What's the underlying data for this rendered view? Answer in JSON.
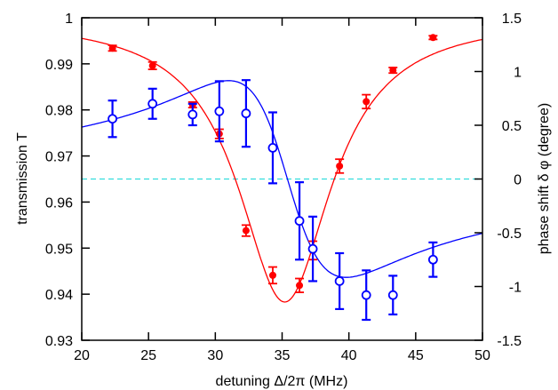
{
  "chart_data": {
    "type": "scatter",
    "title": "",
    "xlabel": "detuning Δ/2π (MHz)",
    "ylabel": "transmission T",
    "y2label": "phase shift δ φ (degree)",
    "xlim": [
      20,
      50
    ],
    "ylim": [
      0.93,
      1.0
    ],
    "y2lim": [
      -1.5,
      1.5
    ],
    "xticks": [
      "20",
      "25",
      "30",
      "35",
      "40",
      "45",
      "50"
    ],
    "yticks": [
      "0.93",
      "0.94",
      "0.95",
      "0.96",
      "0.97",
      "0.98",
      "0.99",
      "1"
    ],
    "y2ticks": [
      "-1.5",
      "-1",
      "-0.5",
      "0",
      "0.5",
      "1",
      "1.5"
    ],
    "grid": false,
    "reference_line": {
      "axis": "y2",
      "value": 0,
      "style": "dashed",
      "color": "#33dddd"
    },
    "series": [
      {
        "name": "transmission",
        "axis": "y",
        "color": "#ff0000",
        "marker": "filled-circle",
        "x": [
          22.3,
          25.3,
          28.3,
          30.3,
          32.3,
          34.3,
          36.3,
          37.3,
          39.3,
          41.3,
          43.3,
          46.3
        ],
        "y": [
          0.9934,
          0.9896,
          0.9811,
          0.9748,
          0.9538,
          0.9441,
          0.9419,
          0.9495,
          0.9678,
          0.9818,
          0.9886,
          0.9957
        ],
        "err": [
          0.0006,
          0.0008,
          0.0006,
          0.001,
          0.0012,
          0.0018,
          0.0015,
          0.002,
          0.0015,
          0.0015,
          0.0006,
          0.0004
        ],
        "fit": {
          "model": "lorentzian-dip",
          "baseline": 1.0,
          "depth": 0.0617,
          "center": 35.2,
          "width": 4.25
        }
      },
      {
        "name": "phase shift",
        "axis": "y2",
        "color": "#0000ff",
        "marker": "open-circle",
        "x": [
          22.3,
          25.3,
          28.3,
          30.3,
          32.3,
          34.3,
          36.3,
          37.3,
          39.3,
          41.3,
          43.3,
          46.3
        ],
        "y": [
          0.56,
          0.7,
          0.6,
          0.63,
          0.61,
          0.29,
          -0.39,
          -0.65,
          -0.95,
          -1.08,
          -1.08,
          -0.75
        ],
        "err": [
          0.17,
          0.14,
          0.1,
          0.28,
          0.31,
          0.33,
          0.36,
          0.3,
          0.26,
          0.23,
          0.18,
          0.16
        ],
        "fit": {
          "model": "dispersive",
          "amplitude": 1.83,
          "center": 35.4,
          "width": 4.4,
          "offset": 0
        }
      }
    ]
  }
}
